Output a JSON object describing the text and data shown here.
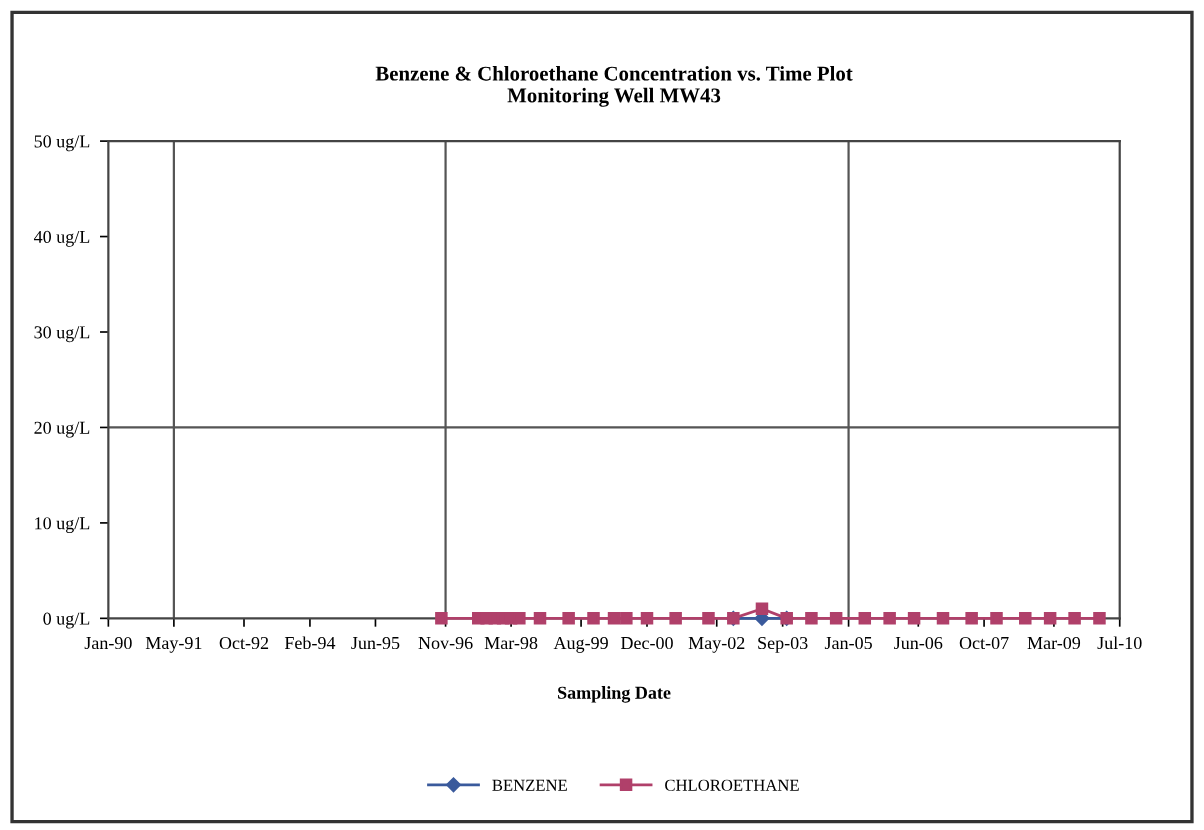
{
  "chart_data": {
    "type": "line",
    "title": "Benzene & Chloroethane Concentration vs. Time Plot\nMonitoring Well MW43",
    "xlabel": "Sampling Date",
    "x": [
      "1996-10",
      "1997-07",
      "1997-09",
      "1997-11",
      "1998-01",
      "1998-03",
      "1998-05",
      "1998-10",
      "1999-05",
      "1999-11",
      "2000-04",
      "2000-07",
      "2000-12",
      "2001-07",
      "2002-03",
      "2002-09",
      "2003-04",
      "2003-10",
      "2004-04",
      "2004-10",
      "2005-05",
      "2005-11",
      "2006-05",
      "2006-12",
      "2007-07",
      "2008-01",
      "2008-08",
      "2009-02",
      "2009-08",
      "2010-02"
    ],
    "series": [
      {
        "name": "BENZENE",
        "color": "#3a5a9c",
        "marker": "diamond",
        "values": [
          null,
          null,
          null,
          null,
          null,
          null,
          null,
          null,
          null,
          null,
          null,
          null,
          null,
          null,
          null,
          0,
          0,
          0,
          null,
          null,
          null,
          null,
          null,
          null,
          null,
          null,
          null,
          null,
          null,
          null
        ]
      },
      {
        "name": "CHLOROETHANE",
        "color": "#b0406a",
        "marker": "square",
        "values": [
          0,
          0,
          0,
          0,
          0,
          0,
          0,
          0,
          0,
          0,
          0,
          0,
          0,
          0,
          0,
          0,
          1,
          0,
          0,
          0,
          0,
          0,
          0,
          0,
          0,
          0,
          0,
          0,
          0,
          0
        ]
      }
    ],
    "xlim": [
      "1990-01",
      "2010-07"
    ],
    "xticks": [
      {
        "value": "1990-01",
        "label": "Jan-90"
      },
      {
        "value": "1991-05",
        "label": "May-91"
      },
      {
        "value": "1992-10",
        "label": "Oct-92"
      },
      {
        "value": "1994-02",
        "label": "Feb-94"
      },
      {
        "value": "1995-06",
        "label": "Jun-95"
      },
      {
        "value": "1996-11",
        "label": "Nov-96"
      },
      {
        "value": "1998-03",
        "label": "Mar-98"
      },
      {
        "value": "1999-08",
        "label": "Aug-99"
      },
      {
        "value": "2000-12",
        "label": "Dec-00"
      },
      {
        "value": "2002-05",
        "label": "May-02"
      },
      {
        "value": "2003-09",
        "label": "Sep-03"
      },
      {
        "value": "2005-01",
        "label": "Jan-05"
      },
      {
        "value": "2006-06",
        "label": "Jun-06"
      },
      {
        "value": "2007-10",
        "label": "Oct-07"
      },
      {
        "value": "2009-03",
        "label": "Mar-09"
      },
      {
        "value": "2010-07",
        "label": "Jul-10"
      }
    ],
    "ylim": [
      0,
      50
    ],
    "yticks": [
      {
        "value": 0,
        "label": "0 ug/L"
      },
      {
        "value": 10,
        "label": "10 ug/L"
      },
      {
        "value": 20,
        "label": "20 ug/L"
      },
      {
        "value": 30,
        "label": "30 ug/L"
      },
      {
        "value": 40,
        "label": "40 ug/L"
      },
      {
        "value": 50,
        "label": "50 ug/L"
      }
    ],
    "ref_lines": [
      {
        "axis": "x",
        "value": "1991-05",
        "color": "#555555"
      },
      {
        "axis": "x",
        "value": "1996-11",
        "color": "#555555"
      },
      {
        "axis": "x",
        "value": "2005-01",
        "color": "#555555"
      },
      {
        "axis": "y",
        "value": 20,
        "color": "#555555"
      }
    ],
    "grid": false,
    "legend": "bottom",
    "line_style": "solid"
  }
}
